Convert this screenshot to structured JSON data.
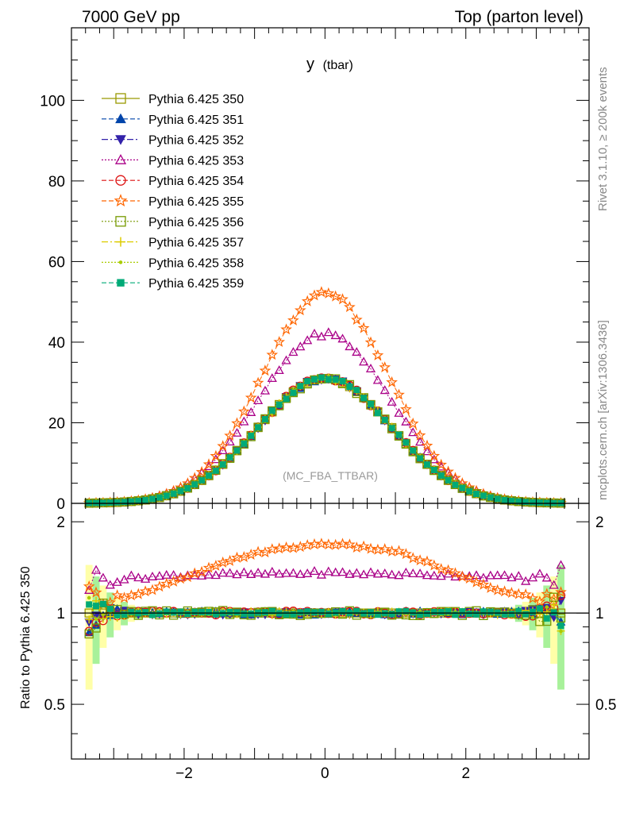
{
  "header": {
    "left": "7000 GeV pp",
    "right": "Top (parton level)"
  },
  "side": {
    "top": "Rivet 3.1.10, ≥ 200k events",
    "bottom": "mcplots.cern.ch [arXiv:1306.3436]"
  },
  "chart_data": {
    "type": "line",
    "title_main": "y",
    "title_sub": "(tbar)",
    "watermark": "(MC_FBA_TTBAR)",
    "ratio_ylabel": "Ratio to Pythia 6.425 350",
    "xlim": [
      -3.6,
      3.75
    ],
    "ylim_main": [
      0,
      118
    ],
    "ylim_ratio": [
      0.33,
      2.3
    ],
    "x_ticks": [
      {
        "v": -2,
        "label": "−2"
      },
      {
        "v": 0,
        "label": "0"
      },
      {
        "v": 2,
        "label": "2"
      }
    ],
    "main_y_ticks": [
      {
        "v": 0,
        "label": "0"
      },
      {
        "v": 20,
        "label": "20"
      },
      {
        "v": 40,
        "label": "40"
      },
      {
        "v": 60,
        "label": "60"
      },
      {
        "v": 80,
        "label": "80"
      },
      {
        "v": 100,
        "label": "100"
      }
    ],
    "ratio_y_ticks": [
      {
        "v": 0.5,
        "label": "0.5"
      },
      {
        "v": 1,
        "label": "1"
      },
      {
        "v": 2,
        "label": "2"
      }
    ],
    "x_range_data": [
      -3.4,
      3.4
    ],
    "bin_width": 0.1,
    "reference_shape": {
      "type": "gaussian",
      "peak": 31,
      "sigma": 0.95
    },
    "series": [
      {
        "name": "Pythia 6.425 350",
        "color": "#999900",
        "marker": "square-open",
        "dash": "",
        "scale": 1.0,
        "ratio_shape": [],
        "noise": 0.0
      },
      {
        "name": "Pythia 6.425 351",
        "color": "#0044aa",
        "marker": "triangle-up-filled",
        "dash": "6,3",
        "scale": 1.0,
        "ratio_shape": [],
        "noise": 0.015
      },
      {
        "name": "Pythia 6.425 352",
        "color": "#3322aa",
        "marker": "triangle-down-filled",
        "dash": "8,3,2,3",
        "scale": 1.0,
        "ratio_shape": [],
        "noise": 0.015
      },
      {
        "name": "Pythia 6.425 353",
        "color": "#aa0088",
        "marker": "triangle-up-open",
        "dash": "2,2",
        "scale": 1.16,
        "ratio_shape": [
          [
            -3.0,
            1.12
          ],
          [
            -2.0,
            1.15
          ],
          [
            0.0,
            1.17
          ],
          [
            2.0,
            1.15
          ],
          [
            3.0,
            1.12
          ]
        ],
        "noise": 0.015
      },
      {
        "name": "Pythia 6.425 354",
        "color": "#dd1111",
        "marker": "circle-open",
        "dash": "6,3",
        "scale": 1.0,
        "ratio_shape": [],
        "noise": 0.015
      },
      {
        "name": "Pythia 6.425 355",
        "color": "#ff6600",
        "marker": "star-open",
        "dash": "6,3",
        "scale": 1.0,
        "ratio_shape": [
          [
            -3.0,
            1.12
          ],
          [
            -2.5,
            1.18
          ],
          [
            -2.0,
            1.3
          ],
          [
            -1.0,
            1.58
          ],
          [
            0.0,
            1.7
          ],
          [
            1.0,
            1.6
          ],
          [
            2.0,
            1.3
          ],
          [
            2.5,
            1.18
          ],
          [
            3.0,
            1.12
          ]
        ],
        "noise": 0.01
      },
      {
        "name": "Pythia 6.425 356",
        "color": "#779900",
        "marker": "square-open",
        "dash": "2,2",
        "scale": 1.0,
        "ratio_shape": [],
        "noise": 0.02
      },
      {
        "name": "Pythia 6.425 357",
        "color": "#ddcc00",
        "marker": "cross",
        "dash": "8,3,2,3",
        "scale": 1.0,
        "ratio_shape": [],
        "noise": 0.015
      },
      {
        "name": "Pythia 6.425 358",
        "color": "#aacc00",
        "marker": "dot",
        "dash": "2,2",
        "scale": 1.0,
        "ratio_shape": [],
        "noise": 0.015
      },
      {
        "name": "Pythia 6.425 359",
        "color": "#00aa77",
        "marker": "square-filled",
        "dash": "6,3",
        "scale": 1.0,
        "ratio_shape": [],
        "noise": 0.015
      }
    ]
  }
}
